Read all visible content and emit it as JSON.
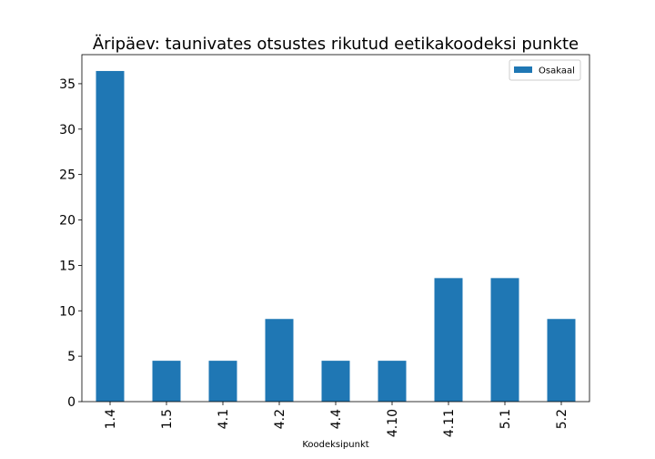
{
  "chart_data": {
    "type": "bar",
    "title": "Äripäev: taunivates otsustes rikutud eetikakoodeksi punkte",
    "xlabel": "Koodeksipunkt",
    "ylabel": "",
    "categories": [
      "1.4",
      "1.5",
      "4.1",
      "4.2",
      "4.4",
      "4.10",
      "4.11",
      "5.1",
      "5.2"
    ],
    "series": [
      {
        "name": "Osakaal",
        "color": "#1f77b4",
        "values": [
          36.4,
          4.5,
          4.5,
          9.1,
          4.5,
          4.5,
          13.6,
          13.6,
          9.1
        ]
      }
    ],
    "ylim": [
      0,
      38.2
    ],
    "yticks": [
      0,
      5,
      10,
      15,
      20,
      25,
      30,
      35
    ],
    "grid": false,
    "legend_position": "top-right"
  }
}
